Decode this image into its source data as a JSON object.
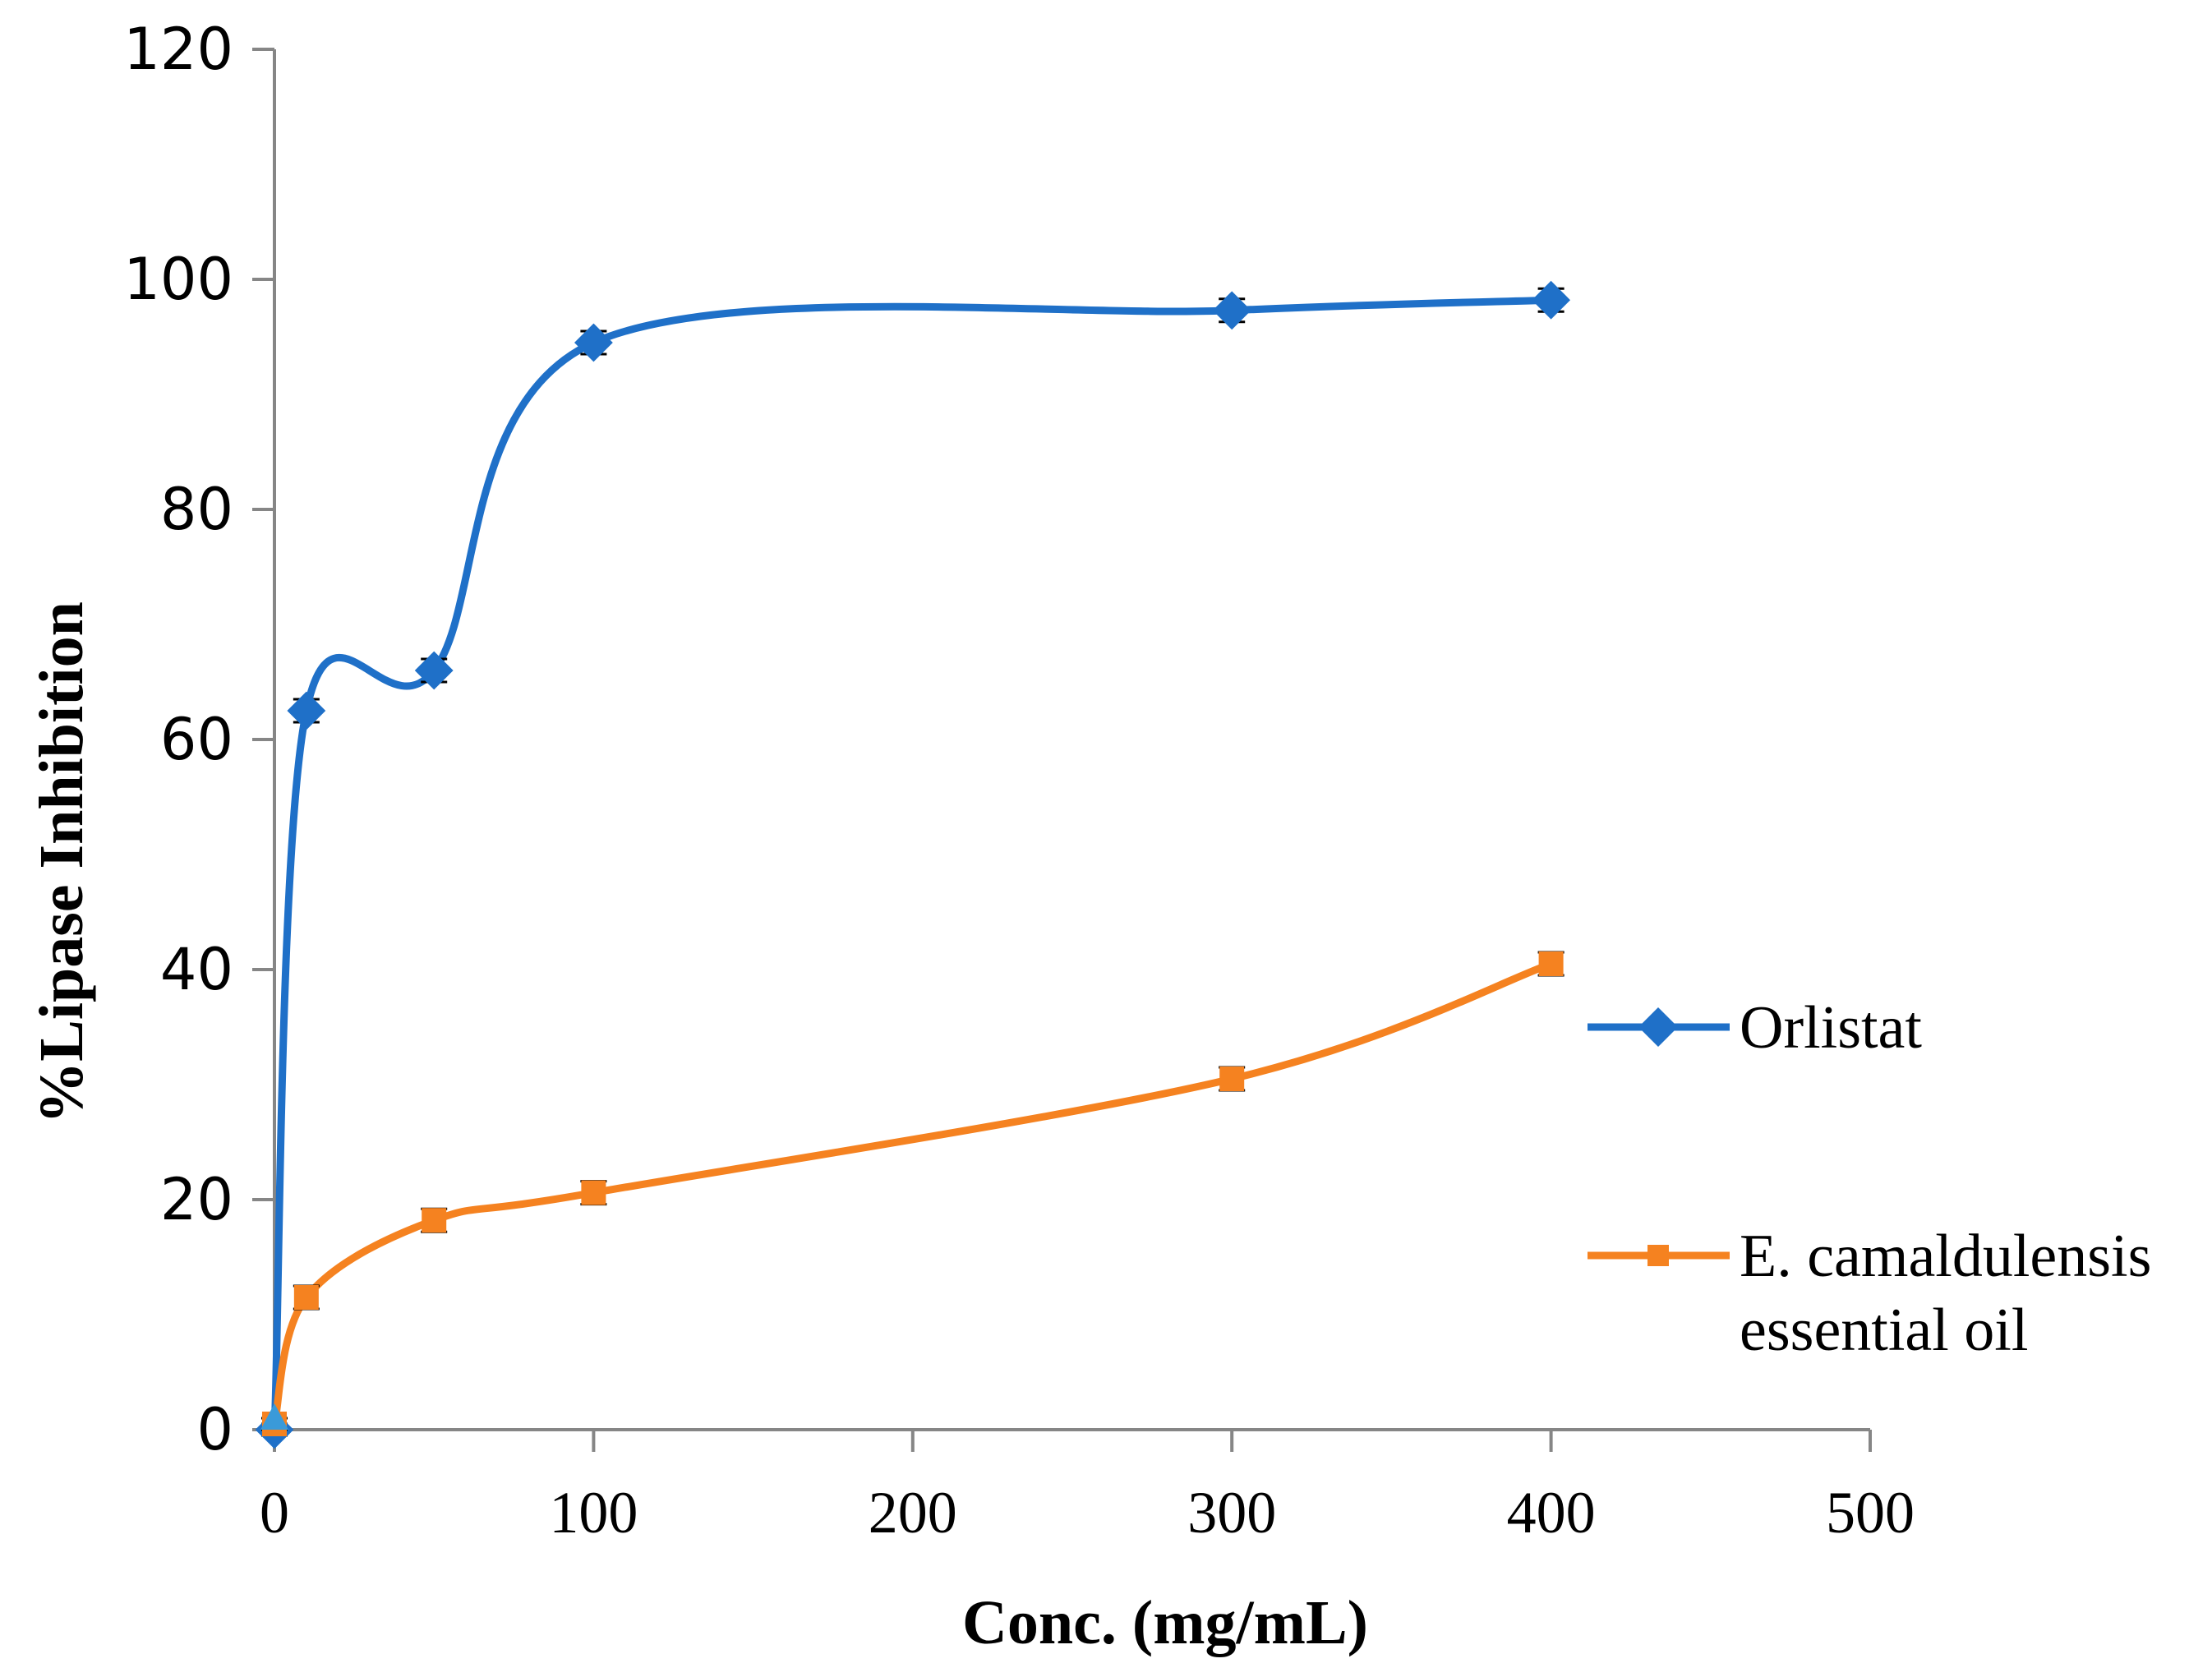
{
  "chart_data": {
    "type": "line",
    "title": "",
    "xlabel": "Conc. (mg/mL)",
    "ylabel": "%Lipase Inhibition",
    "xlim": [
      0,
      500
    ],
    "ylim": [
      0,
      120
    ],
    "xticks": [
      0,
      100,
      200,
      300,
      400,
      500
    ],
    "yticks": [
      0,
      20,
      40,
      60,
      80,
      100,
      120
    ],
    "grid": false,
    "legend_position": "right",
    "series": [
      {
        "name": "Orlistat",
        "marker": "diamond",
        "color": "#1f70c8",
        "x": [
          0,
          10,
          50,
          100,
          300,
          400
        ],
        "y": [
          0,
          62.5,
          66,
          94.5,
          97.3,
          98.2
        ],
        "error": [
          0.5,
          1,
          1,
          1,
          1,
          1
        ]
      },
      {
        "name": "E. camaldulensis essential oil",
        "legend_lines": [
          "E. camaldulensis",
          "essential oil"
        ],
        "marker": "square",
        "color": "#f58220",
        "x": [
          0,
          10,
          50,
          100,
          300,
          400
        ],
        "y": [
          0.5,
          11.5,
          18.2,
          20.6,
          30.5,
          40.5
        ],
        "error": [
          0.5,
          1,
          1,
          1,
          1,
          1
        ]
      }
    ],
    "origin_marker": {
      "shape": "triangle",
      "color": "#3a9ad9",
      "x": 0,
      "y": 1
    }
  }
}
